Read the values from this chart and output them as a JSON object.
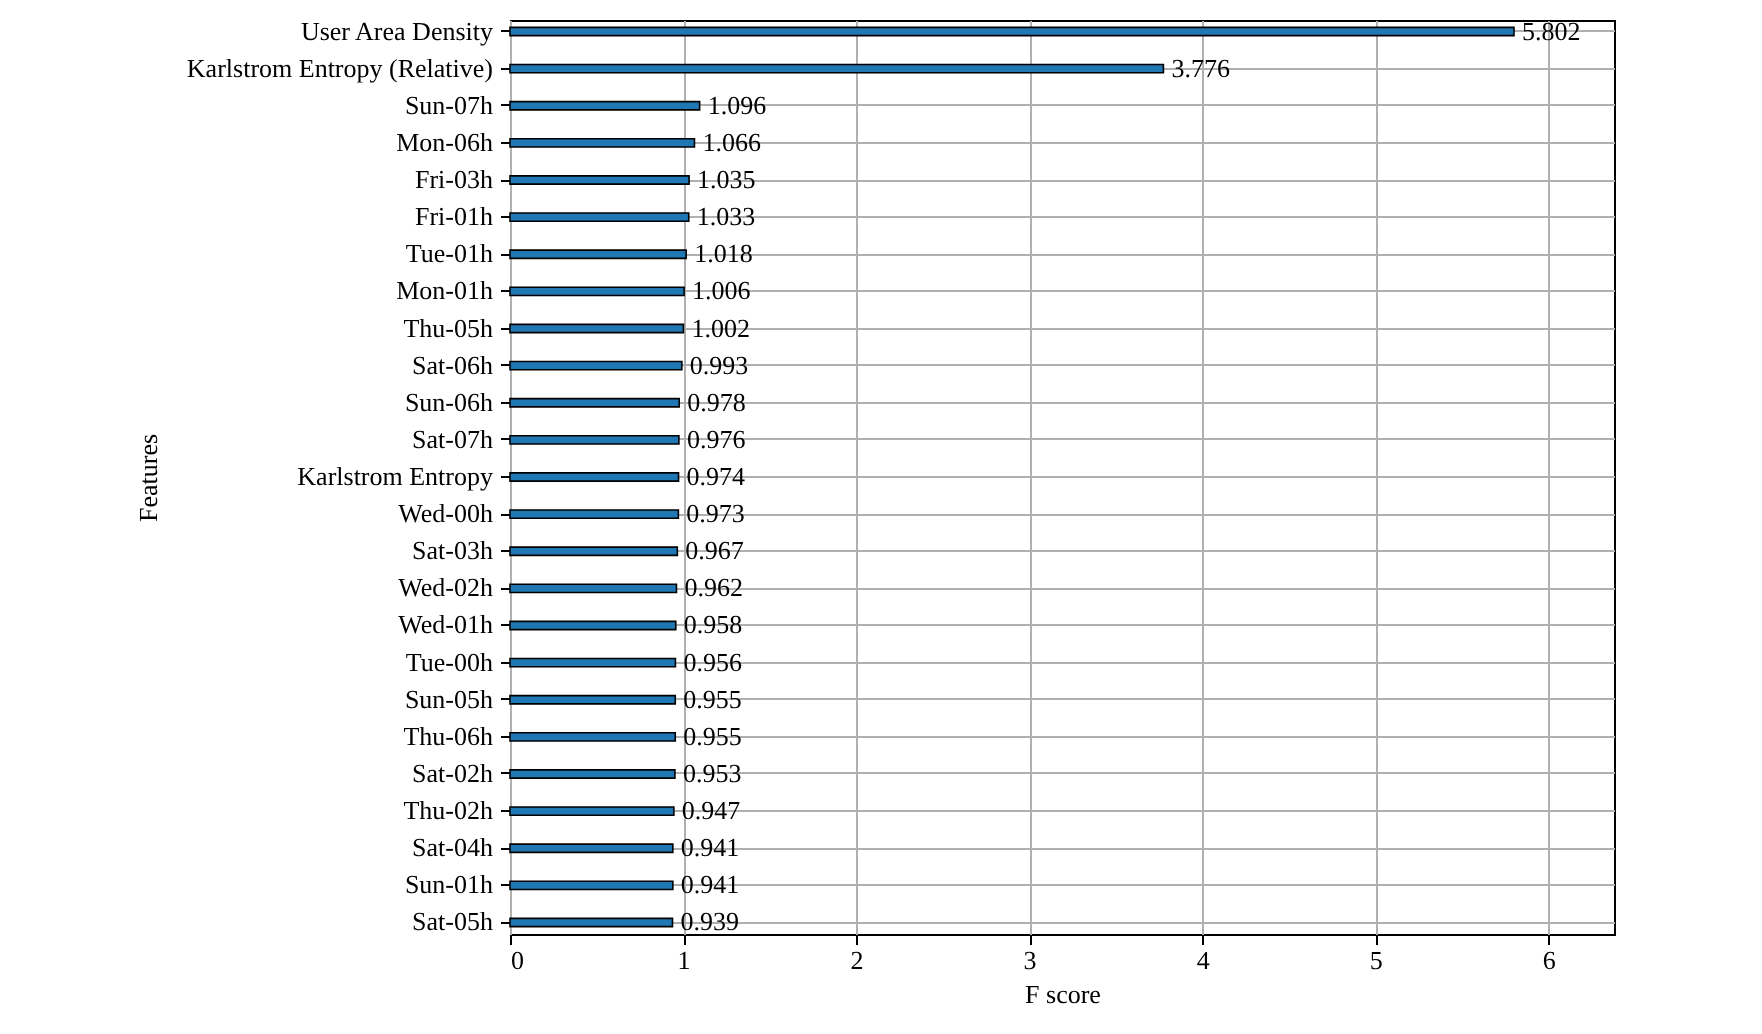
{
  "chart_data": {
    "type": "bar",
    "orientation": "horizontal",
    "xlabel": "F score",
    "ylabel": "Features",
    "categories": [
      "User Area Density",
      "Karlstrom Entropy (Relative)",
      "Sun-07h",
      "Mon-06h",
      "Fri-03h",
      "Fri-01h",
      "Tue-01h",
      "Mon-01h",
      "Thu-05h",
      "Sat-06h",
      "Sun-06h",
      "Sat-07h",
      "Karlstrom Entropy",
      "Wed-00h",
      "Sat-03h",
      "Wed-02h",
      "Wed-01h",
      "Tue-00h",
      "Sun-05h",
      "Thu-06h",
      "Sat-02h",
      "Thu-02h",
      "Sat-04h",
      "Sun-01h",
      "Sat-05h"
    ],
    "values": [
      5.802,
      3.776,
      1.096,
      1.066,
      1.035,
      1.033,
      1.018,
      1.006,
      1.002,
      0.993,
      0.978,
      0.976,
      0.974,
      0.973,
      0.967,
      0.962,
      0.958,
      0.956,
      0.955,
      0.955,
      0.953,
      0.947,
      0.941,
      0.941,
      0.939
    ],
    "color": "#1f77b4",
    "xlim": [
      0,
      6.38
    ],
    "xticks": [
      0,
      1,
      2,
      3,
      4,
      5,
      6
    ],
    "grid": true,
    "data_labels": true
  }
}
